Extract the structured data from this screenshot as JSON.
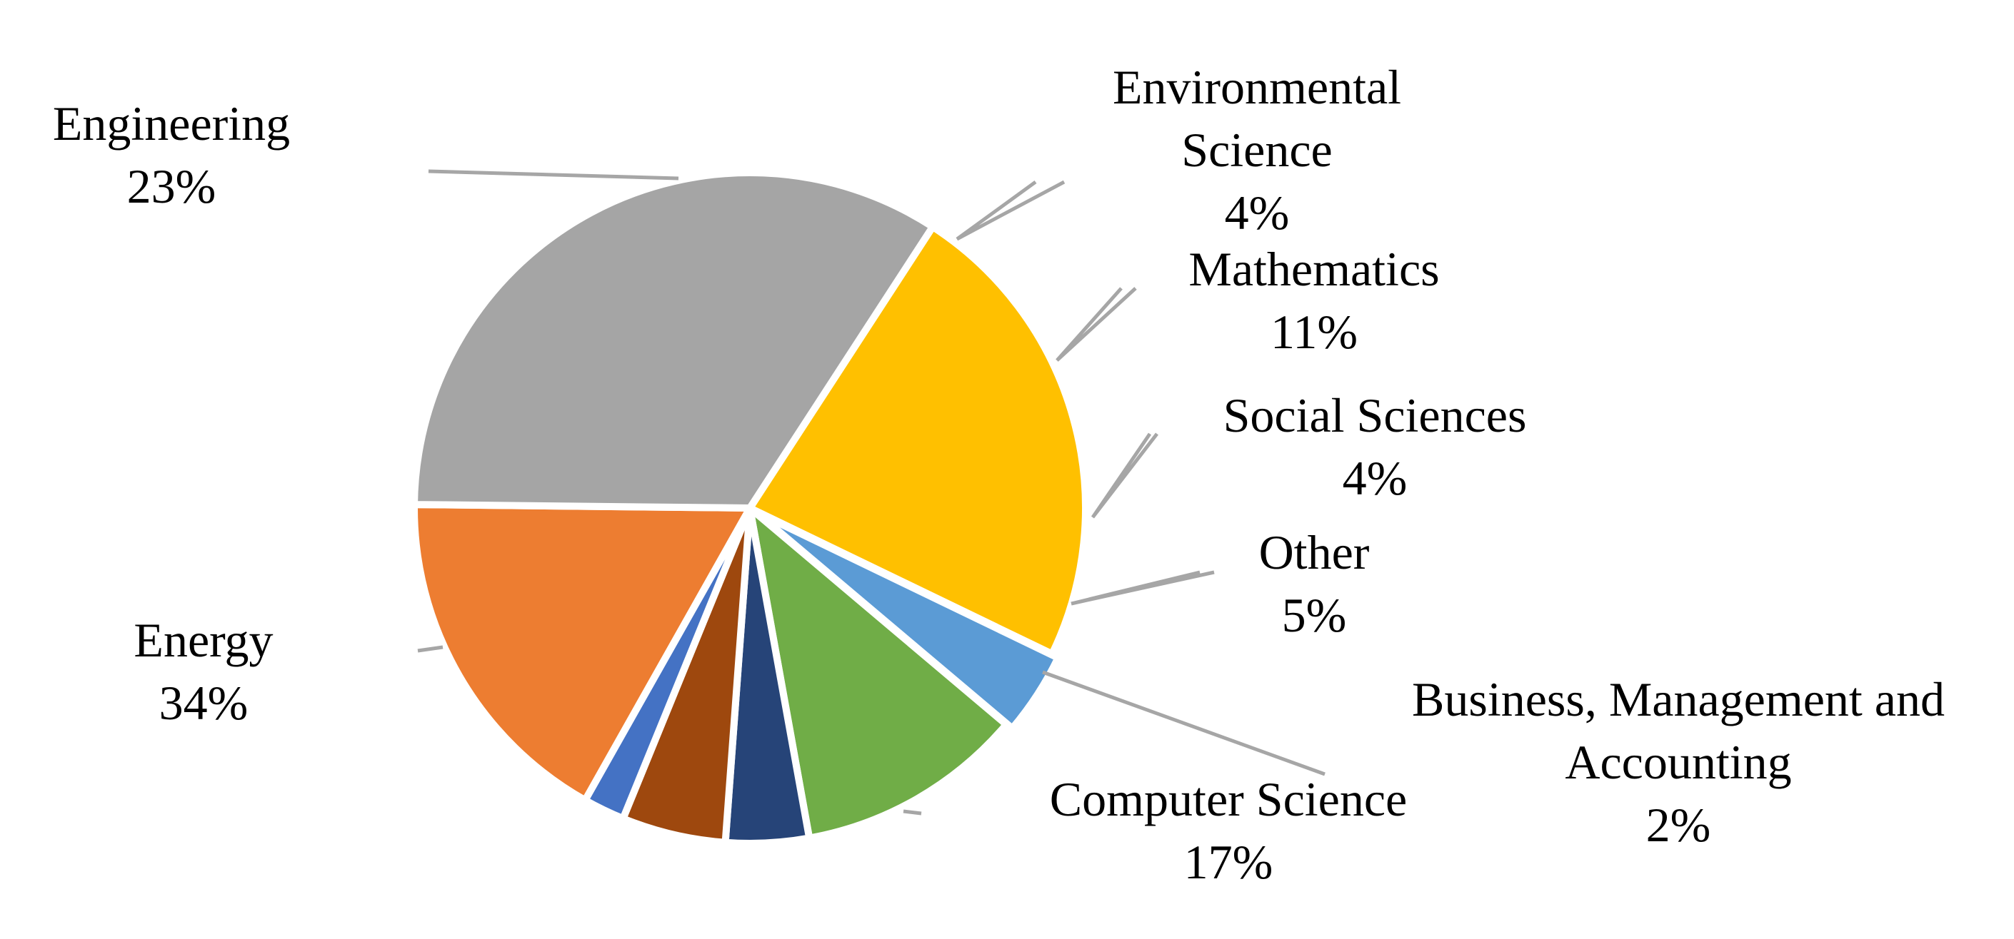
{
  "chart_data": {
    "type": "pie",
    "title": "",
    "start_angle_deg": -57,
    "direction": "clockwise",
    "slices": [
      {
        "name": "Engineering",
        "name_lines": [
          "Engineering"
        ],
        "value_label": "23%",
        "value": 23,
        "color": "#FFC000"
      },
      {
        "name": "Environmental Science",
        "name_lines": [
          "Environmental",
          "Science"
        ],
        "value_label": "4%",
        "value": 4,
        "color": "#5B9BD5"
      },
      {
        "name": "Mathematics",
        "name_lines": [
          "Mathematics"
        ],
        "value_label": "11%",
        "value": 11,
        "color": "#70AD47"
      },
      {
        "name": "Social Sciences",
        "name_lines": [
          "Social Sciences"
        ],
        "value_label": "4%",
        "value": 4,
        "color": "#264478"
      },
      {
        "name": "Other",
        "name_lines": [
          "Other"
        ],
        "value_label": "5%",
        "value": 5,
        "color": "#9E480E"
      },
      {
        "name": "Business, Management and Accounting",
        "name_lines": [
          "Business, Management and",
          "Accounting"
        ],
        "value_label": "2%",
        "value": 2,
        "color": "#4472C4"
      },
      {
        "name": "Computer Science",
        "name_lines": [
          "Computer Science"
        ],
        "value_label": "17%",
        "value": 17,
        "color": "#ED7D31"
      },
      {
        "name": "Energy",
        "name_lines": [
          "Energy"
        ],
        "value_label": "34%",
        "value": 34,
        "color": "#A5A5A5"
      }
    ]
  }
}
